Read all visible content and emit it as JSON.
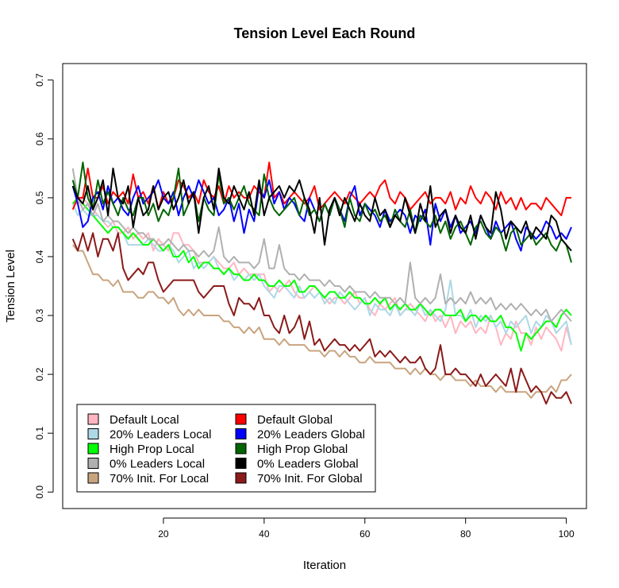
{
  "chart_data": {
    "type": "line",
    "title": "Tension Level Each Round",
    "xlabel": "Iteration",
    "ylabel": "Tension Level",
    "xlim": [
      0,
      104
    ],
    "ylim": [
      -0.028,
      0.728
    ],
    "x_ticks": [
      "20",
      "40",
      "60",
      "80",
      "100"
    ],
    "y_ticks": [
      "0.0",
      "0.1",
      "0.2",
      "0.3",
      "0.4",
      "0.5",
      "0.6",
      "0.7"
    ],
    "grid": false,
    "legend_position": "bottom-left",
    "x_start": 2,
    "x_step": 1,
    "series": [
      {
        "name": "Default Local",
        "color": "#ffb6c1",
        "values": [
          0.49,
          0.49,
          0.5,
          0.49,
          0.48,
          0.47,
          0.46,
          0.45,
          0.46,
          0.44,
          0.44,
          0.45,
          0.43,
          0.44,
          0.43,
          0.44,
          0.41,
          0.43,
          0.42,
          0.41,
          0.44,
          0.44,
          0.42,
          0.42,
          0.41,
          0.39,
          0.39,
          0.39,
          0.4,
          0.39,
          0.38,
          0.38,
          0.39,
          0.37,
          0.38,
          0.37,
          0.37,
          0.37,
          0.37,
          0.34,
          0.35,
          0.34,
          0.35,
          0.36,
          0.34,
          0.33,
          0.33,
          0.34,
          0.35,
          0.34,
          0.33,
          0.32,
          0.33,
          0.33,
          0.32,
          0.33,
          0.34,
          0.32,
          0.33,
          0.31,
          0.3,
          0.32,
          0.31,
          0.32,
          0.33,
          0.3,
          0.31,
          0.32,
          0.31,
          0.3,
          0.29,
          0.31,
          0.29,
          0.3,
          0.28,
          0.3,
          0.27,
          0.29,
          0.28,
          0.29,
          0.27,
          0.28,
          0.27,
          0.3,
          0.28,
          0.25,
          0.27,
          0.26,
          0.29,
          0.27,
          0.27,
          0.25,
          0.28,
          0.26,
          0.28,
          0.27,
          0.26,
          0.24,
          0.28,
          0.25
        ]
      },
      {
        "name": "20% Leaders Local",
        "color": "#add8e6",
        "values": [
          0.49,
          0.47,
          0.48,
          0.47,
          0.47,
          0.47,
          0.46,
          0.46,
          0.45,
          0.45,
          0.44,
          0.42,
          0.42,
          0.42,
          0.42,
          0.43,
          0.42,
          0.41,
          0.41,
          0.42,
          0.41,
          0.39,
          0.4,
          0.41,
          0.38,
          0.39,
          0.38,
          0.39,
          0.4,
          0.38,
          0.37,
          0.38,
          0.36,
          0.37,
          0.36,
          0.37,
          0.36,
          0.37,
          0.35,
          0.34,
          0.33,
          0.35,
          0.35,
          0.34,
          0.33,
          0.35,
          0.33,
          0.34,
          0.33,
          0.34,
          0.32,
          0.33,
          0.32,
          0.34,
          0.33,
          0.32,
          0.31,
          0.32,
          0.33,
          0.3,
          0.32,
          0.31,
          0.31,
          0.3,
          0.32,
          0.3,
          0.31,
          0.31,
          0.3,
          0.32,
          0.3,
          0.31,
          0.3,
          0.29,
          0.31,
          0.36,
          0.3,
          0.3,
          0.29,
          0.31,
          0.28,
          0.3,
          0.29,
          0.3,
          0.28,
          0.29,
          0.27,
          0.29,
          0.28,
          0.29,
          0.3,
          0.27,
          0.29,
          0.28,
          0.3,
          0.29,
          0.27,
          0.28,
          0.29,
          0.25
        ]
      },
      {
        "name": "High Prop Local",
        "color": "#00ff00",
        "values": [
          0.49,
          0.5,
          0.49,
          0.48,
          0.47,
          0.46,
          0.45,
          0.44,
          0.45,
          0.45,
          0.44,
          0.43,
          0.44,
          0.43,
          0.42,
          0.42,
          0.43,
          0.42,
          0.41,
          0.42,
          0.4,
          0.4,
          0.41,
          0.39,
          0.4,
          0.38,
          0.39,
          0.39,
          0.38,
          0.38,
          0.37,
          0.38,
          0.37,
          0.37,
          0.36,
          0.36,
          0.37,
          0.36,
          0.36,
          0.35,
          0.35,
          0.36,
          0.35,
          0.35,
          0.36,
          0.34,
          0.34,
          0.35,
          0.35,
          0.34,
          0.33,
          0.34,
          0.34,
          0.33,
          0.33,
          0.34,
          0.33,
          0.33,
          0.32,
          0.32,
          0.33,
          0.32,
          0.33,
          0.31,
          0.32,
          0.31,
          0.32,
          0.31,
          0.31,
          0.32,
          0.31,
          0.3,
          0.31,
          0.31,
          0.3,
          0.3,
          0.3,
          0.31,
          0.29,
          0.3,
          0.3,
          0.29,
          0.3,
          0.29,
          0.29,
          0.3,
          0.28,
          0.28,
          0.27,
          0.24,
          0.27,
          0.26,
          0.27,
          0.28,
          0.29,
          0.29,
          0.28,
          0.3,
          0.31,
          0.3
        ]
      },
      {
        "name": "0% Leaders Local",
        "color": "#b0b0b0",
        "values": [
          0.55,
          0.5,
          0.48,
          0.49,
          0.47,
          0.49,
          0.46,
          0.47,
          0.46,
          0.46,
          0.45,
          0.44,
          0.45,
          0.44,
          0.44,
          0.43,
          0.43,
          0.42,
          0.42,
          0.43,
          0.42,
          0.41,
          0.42,
          0.41,
          0.41,
          0.4,
          0.41,
          0.4,
          0.41,
          0.45,
          0.4,
          0.39,
          0.4,
          0.39,
          0.39,
          0.39,
          0.38,
          0.39,
          0.43,
          0.38,
          0.38,
          0.42,
          0.38,
          0.37,
          0.37,
          0.36,
          0.37,
          0.36,
          0.36,
          0.36,
          0.35,
          0.36,
          0.35,
          0.35,
          0.34,
          0.35,
          0.34,
          0.34,
          0.34,
          0.33,
          0.34,
          0.33,
          0.33,
          0.33,
          0.32,
          0.33,
          0.32,
          0.39,
          0.33,
          0.32,
          0.33,
          0.32,
          0.33,
          0.37,
          0.32,
          0.33,
          0.32,
          0.33,
          0.32,
          0.34,
          0.32,
          0.33,
          0.32,
          0.33,
          0.31,
          0.32,
          0.31,
          0.32,
          0.31,
          0.32,
          0.31,
          0.3,
          0.31,
          0.3,
          0.31,
          0.29,
          0.3,
          0.31,
          0.3,
          0.29
        ]
      },
      {
        "name": "70% Init. For Local",
        "color": "#c8a47e",
        "values": [
          0.42,
          0.41,
          0.41,
          0.39,
          0.37,
          0.37,
          0.36,
          0.36,
          0.35,
          0.36,
          0.34,
          0.34,
          0.34,
          0.33,
          0.33,
          0.34,
          0.34,
          0.33,
          0.33,
          0.32,
          0.33,
          0.31,
          0.3,
          0.31,
          0.3,
          0.31,
          0.3,
          0.3,
          0.3,
          0.3,
          0.29,
          0.29,
          0.28,
          0.28,
          0.27,
          0.28,
          0.27,
          0.28,
          0.26,
          0.26,
          0.26,
          0.25,
          0.26,
          0.25,
          0.25,
          0.25,
          0.25,
          0.24,
          0.24,
          0.24,
          0.23,
          0.24,
          0.24,
          0.23,
          0.24,
          0.23,
          0.23,
          0.22,
          0.22,
          0.23,
          0.22,
          0.22,
          0.22,
          0.22,
          0.21,
          0.21,
          0.21,
          0.2,
          0.21,
          0.2,
          0.21,
          0.2,
          0.2,
          0.19,
          0.2,
          0.2,
          0.19,
          0.19,
          0.19,
          0.18,
          0.19,
          0.18,
          0.18,
          0.18,
          0.17,
          0.18,
          0.17,
          0.17,
          0.17,
          0.17,
          0.17,
          0.16,
          0.17,
          0.17,
          0.17,
          0.18,
          0.17,
          0.19,
          0.19,
          0.2
        ]
      },
      {
        "name": "Default Global",
        "color": "#ff0000",
        "values": [
          0.48,
          0.5,
          0.5,
          0.55,
          0.5,
          0.5,
          0.52,
          0.49,
          0.51,
          0.5,
          0.51,
          0.49,
          0.54,
          0.5,
          0.51,
          0.49,
          0.52,
          0.48,
          0.51,
          0.49,
          0.5,
          0.53,
          0.52,
          0.5,
          0.51,
          0.49,
          0.53,
          0.51,
          0.5,
          0.52,
          0.49,
          0.52,
          0.5,
          0.51,
          0.5,
          0.5,
          0.52,
          0.51,
          0.5,
          0.56,
          0.5,
          0.51,
          0.49,
          0.5,
          0.51,
          0.5,
          0.49,
          0.5,
          0.52,
          0.48,
          0.49,
          0.5,
          0.51,
          0.5,
          0.49,
          0.51,
          0.5,
          0.49,
          0.5,
          0.51,
          0.5,
          0.52,
          0.53,
          0.5,
          0.49,
          0.51,
          0.5,
          0.48,
          0.49,
          0.5,
          0.51,
          0.49,
          0.5,
          0.5,
          0.49,
          0.51,
          0.48,
          0.5,
          0.49,
          0.52,
          0.5,
          0.49,
          0.51,
          0.5,
          0.48,
          0.51,
          0.49,
          0.5,
          0.48,
          0.5,
          0.48,
          0.49,
          0.49,
          0.48,
          0.5,
          0.49,
          0.48,
          0.47,
          0.5,
          0.5
        ]
      },
      {
        "name": "20% Leaders Global",
        "color": "#0000ff",
        "values": [
          0.52,
          0.49,
          0.45,
          0.46,
          0.5,
          0.51,
          0.48,
          0.52,
          0.49,
          0.5,
          0.48,
          0.47,
          0.5,
          0.52,
          0.49,
          0.5,
          0.51,
          0.53,
          0.5,
          0.49,
          0.51,
          0.47,
          0.5,
          0.52,
          0.5,
          0.53,
          0.51,
          0.49,
          0.5,
          0.47,
          0.48,
          0.5,
          0.46,
          0.49,
          0.44,
          0.48,
          0.46,
          0.52,
          0.5,
          0.53,
          0.49,
          0.51,
          0.48,
          0.5,
          0.49,
          0.47,
          0.46,
          0.5,
          0.48,
          0.46,
          0.49,
          0.47,
          0.5,
          0.48,
          0.46,
          0.5,
          0.52,
          0.47,
          0.49,
          0.48,
          0.47,
          0.45,
          0.48,
          0.46,
          0.47,
          0.48,
          0.47,
          0.44,
          0.47,
          0.46,
          0.48,
          0.42,
          0.49,
          0.46,
          0.48,
          0.45,
          0.47,
          0.44,
          0.45,
          0.46,
          0.44,
          0.47,
          0.45,
          0.43,
          0.46,
          0.44,
          0.45,
          0.46,
          0.43,
          0.41,
          0.45,
          0.44,
          0.43,
          0.44,
          0.46,
          0.45,
          0.43,
          0.44,
          0.43,
          0.45
        ]
      },
      {
        "name": "High Prop Global",
        "color": "#006400",
        "values": [
          0.53,
          0.5,
          0.56,
          0.5,
          0.48,
          0.53,
          0.49,
          0.51,
          0.49,
          0.47,
          0.5,
          0.48,
          0.47,
          0.5,
          0.5,
          0.47,
          0.49,
          0.46,
          0.48,
          0.47,
          0.5,
          0.55,
          0.47,
          0.49,
          0.51,
          0.46,
          0.5,
          0.48,
          0.47,
          0.54,
          0.49,
          0.5,
          0.48,
          0.5,
          0.52,
          0.49,
          0.48,
          0.47,
          0.54,
          0.5,
          0.48,
          0.47,
          0.48,
          0.49,
          0.5,
          0.47,
          0.5,
          0.47,
          0.48,
          0.46,
          0.49,
          0.47,
          0.5,
          0.48,
          0.45,
          0.5,
          0.47,
          0.46,
          0.49,
          0.47,
          0.48,
          0.46,
          0.47,
          0.45,
          0.48,
          0.46,
          0.45,
          0.48,
          0.44,
          0.47,
          0.46,
          0.45,
          0.47,
          0.44,
          0.46,
          0.43,
          0.45,
          0.46,
          0.44,
          0.42,
          0.45,
          0.46,
          0.44,
          0.43,
          0.45,
          0.44,
          0.41,
          0.44,
          0.45,
          0.42,
          0.43,
          0.44,
          0.42,
          0.43,
          0.44,
          0.42,
          0.41,
          0.43,
          0.42,
          0.39
        ]
      },
      {
        "name": "0% Leaders Global",
        "color": "#000000",
        "values": [
          0.52,
          0.5,
          0.49,
          0.52,
          0.48,
          0.5,
          0.53,
          0.47,
          0.55,
          0.5,
          0.49,
          0.52,
          0.45,
          0.5,
          0.47,
          0.48,
          0.52,
          0.48,
          0.5,
          0.51,
          0.48,
          0.5,
          0.53,
          0.49,
          0.51,
          0.44,
          0.5,
          0.52,
          0.48,
          0.55,
          0.5,
          0.49,
          0.52,
          0.5,
          0.48,
          0.51,
          0.47,
          0.53,
          0.47,
          0.5,
          0.51,
          0.52,
          0.5,
          0.52,
          0.51,
          0.53,
          0.5,
          0.48,
          0.44,
          0.5,
          0.42,
          0.48,
          0.5,
          0.47,
          0.5,
          0.48,
          0.46,
          0.49,
          0.47,
          0.46,
          0.5,
          0.47,
          0.48,
          0.45,
          0.47,
          0.46,
          0.5,
          0.47,
          0.44,
          0.49,
          0.46,
          0.52,
          0.45,
          0.47,
          0.48,
          0.44,
          0.47,
          0.45,
          0.44,
          0.47,
          0.43,
          0.47,
          0.45,
          0.44,
          0.51,
          0.48,
          0.43,
          0.46,
          0.45,
          0.44,
          0.46,
          0.43,
          0.45,
          0.44,
          0.43,
          0.47,
          0.46,
          0.43,
          0.42,
          0.41
        ]
      },
      {
        "name": "70% Init. For Global",
        "color": "#8b1a1a",
        "values": [
          0.43,
          0.41,
          0.44,
          0.41,
          0.44,
          0.4,
          0.43,
          0.43,
          0.41,
          0.44,
          0.38,
          0.36,
          0.37,
          0.38,
          0.37,
          0.39,
          0.39,
          0.36,
          0.34,
          0.35,
          0.36,
          0.36,
          0.36,
          0.36,
          0.36,
          0.34,
          0.33,
          0.34,
          0.35,
          0.35,
          0.35,
          0.32,
          0.3,
          0.33,
          0.32,
          0.32,
          0.31,
          0.33,
          0.3,
          0.3,
          0.28,
          0.27,
          0.3,
          0.27,
          0.28,
          0.3,
          0.26,
          0.29,
          0.25,
          0.26,
          0.24,
          0.25,
          0.26,
          0.25,
          0.25,
          0.24,
          0.25,
          0.24,
          0.25,
          0.26,
          0.23,
          0.24,
          0.23,
          0.24,
          0.23,
          0.22,
          0.23,
          0.22,
          0.22,
          0.23,
          0.21,
          0.2,
          0.21,
          0.25,
          0.2,
          0.2,
          0.21,
          0.2,
          0.2,
          0.19,
          0.18,
          0.2,
          0.18,
          0.19,
          0.2,
          0.19,
          0.18,
          0.21,
          0.17,
          0.21,
          0.19,
          0.17,
          0.18,
          0.17,
          0.15,
          0.17,
          0.16,
          0.16,
          0.17,
          0.15
        ]
      }
    ]
  }
}
